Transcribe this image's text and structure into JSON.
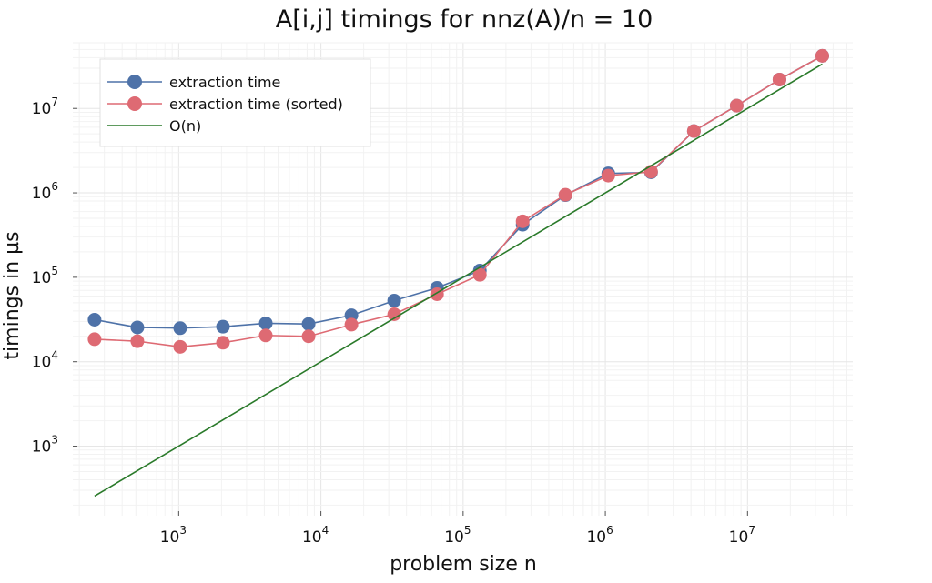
{
  "chart_data": {
    "type": "line",
    "title": "A[i,j] timings for nnz(A)/n = 10",
    "xlabel": "problem size n",
    "ylabel": "timings in µs",
    "xscale": "log10",
    "yscale": "log10",
    "xlim": [
      180,
      55000000
    ],
    "ylim": [
      150,
      60000000
    ],
    "x_ticks": [
      {
        "base": "10",
        "exp": "3",
        "value": 1000
      },
      {
        "base": "10",
        "exp": "4",
        "value": 10000
      },
      {
        "base": "10",
        "exp": "5",
        "value": 100000
      },
      {
        "base": "10",
        "exp": "6",
        "value": 1000000
      },
      {
        "base": "10",
        "exp": "7",
        "value": 10000000
      }
    ],
    "y_ticks": [
      {
        "base": "10",
        "exp": "3",
        "value": 1000
      },
      {
        "base": "10",
        "exp": "4",
        "value": 10000
      },
      {
        "base": "10",
        "exp": "5",
        "value": 100000
      },
      {
        "base": "10",
        "exp": "6",
        "value": 1000000
      },
      {
        "base": "10",
        "exp": "7",
        "value": 10000000
      }
    ],
    "grid": true,
    "legend_position": "top-left",
    "x": [
      256,
      512,
      1024,
      2048,
      4096,
      8192,
      16384,
      32768,
      65536,
      131072,
      262144,
      524288,
      1048576,
      2097152,
      4194304,
      8388608,
      16777216,
      33554432
    ],
    "series": [
      {
        "name": "extraction time",
        "color": "#4e72a8",
        "marker": true,
        "x": [
          256,
          512,
          1024,
          2048,
          4096,
          8192,
          16384,
          32768,
          65536,
          131072,
          262144,
          524288,
          1048576,
          2097152,
          4194304,
          8388608,
          16777216,
          33554432
        ],
        "values": [
          31500,
          25500,
          25000,
          26000,
          28500,
          28000,
          35500,
          53000,
          75000,
          120000,
          420000,
          940000,
          1700000,
          1750000,
          5400000,
          10800000,
          22000000,
          42000000
        ]
      },
      {
        "name": "extraction time (sorted)",
        "color": "#de6a73",
        "marker": true,
        "x": [
          256,
          512,
          1024,
          2048,
          4096,
          8192,
          16384,
          32768,
          65536,
          131072,
          262144,
          524288,
          1048576,
          2097152,
          4194304,
          8388608,
          16777216,
          33554432
        ],
        "values": [
          18500,
          17500,
          15000,
          16800,
          20500,
          20000,
          27500,
          36500,
          63000,
          107000,
          460000,
          950000,
          1600000,
          1780000,
          5400000,
          10800000,
          22000000,
          42000000
        ]
      },
      {
        "name": "O(n)",
        "color": "#2a7a2a",
        "marker": false,
        "x": [
          256,
          33554432
        ],
        "values": [
          256,
          33554432
        ]
      }
    ]
  }
}
